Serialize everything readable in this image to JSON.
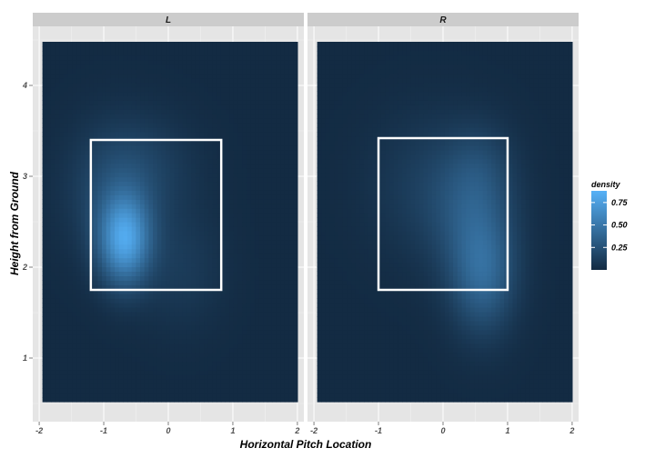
{
  "chart_data": {
    "type": "heatmap",
    "xlabel": "Horizontal Pitch Location",
    "ylabel": "Height from Ground",
    "xlim": [
      -2.1,
      2.1
    ],
    "ylim": [
      0.3,
      4.65
    ],
    "x_ticks": [
      -2,
      -1,
      0,
      1,
      2
    ],
    "x_tick_labels": [
      "-2",
      "-1",
      "0",
      "1",
      "2"
    ],
    "y_ticks": [
      1,
      2,
      3,
      4
    ],
    "y_tick_labels": [
      "1",
      "2",
      "3",
      "4"
    ],
    "density_extent": {
      "x": [
        -1.95,
        2.0
      ],
      "y": [
        0.52,
        4.48
      ]
    },
    "legend": {
      "title": "density",
      "ticks": [
        0.25,
        0.5,
        0.75
      ],
      "tick_labels": [
        "0.25",
        "0.50",
        "0.75"
      ],
      "range": [
        0.0,
        0.88
      ],
      "low_color": "#132b43",
      "high_color": "#56b1f7"
    },
    "panels": [
      {
        "label": "L",
        "strike_zone": {
          "x": [
            -1.2,
            0.82
          ],
          "y": [
            1.75,
            3.4
          ]
        },
        "hotspots": [
          {
            "x": -0.68,
            "y": 2.3,
            "sx": 0.28,
            "sy": 0.34,
            "w": 0.72
          },
          {
            "x": -0.85,
            "y": 2.85,
            "sx": 0.5,
            "sy": 0.5,
            "w": 0.18
          },
          {
            "x": 0.2,
            "y": 2.0,
            "sx": 0.45,
            "sy": 0.45,
            "w": 0.1
          },
          {
            "x": -0.3,
            "y": 3.1,
            "sx": 0.55,
            "sy": 0.4,
            "w": 0.1
          }
        ]
      },
      {
        "label": "R",
        "strike_zone": {
          "x": [
            -1.0,
            1.0
          ],
          "y": [
            1.75,
            3.42
          ]
        },
        "hotspots": [
          {
            "x": 0.62,
            "y": 1.92,
            "sx": 0.35,
            "sy": 0.45,
            "w": 0.36
          },
          {
            "x": 0.45,
            "y": 2.6,
            "sx": 0.45,
            "sy": 0.5,
            "w": 0.2
          },
          {
            "x": -0.2,
            "y": 2.9,
            "sx": 0.65,
            "sy": 0.55,
            "w": 0.12
          },
          {
            "x": 0.6,
            "y": 3.1,
            "sx": 0.35,
            "sy": 0.35,
            "w": 0.1
          }
        ]
      }
    ]
  }
}
